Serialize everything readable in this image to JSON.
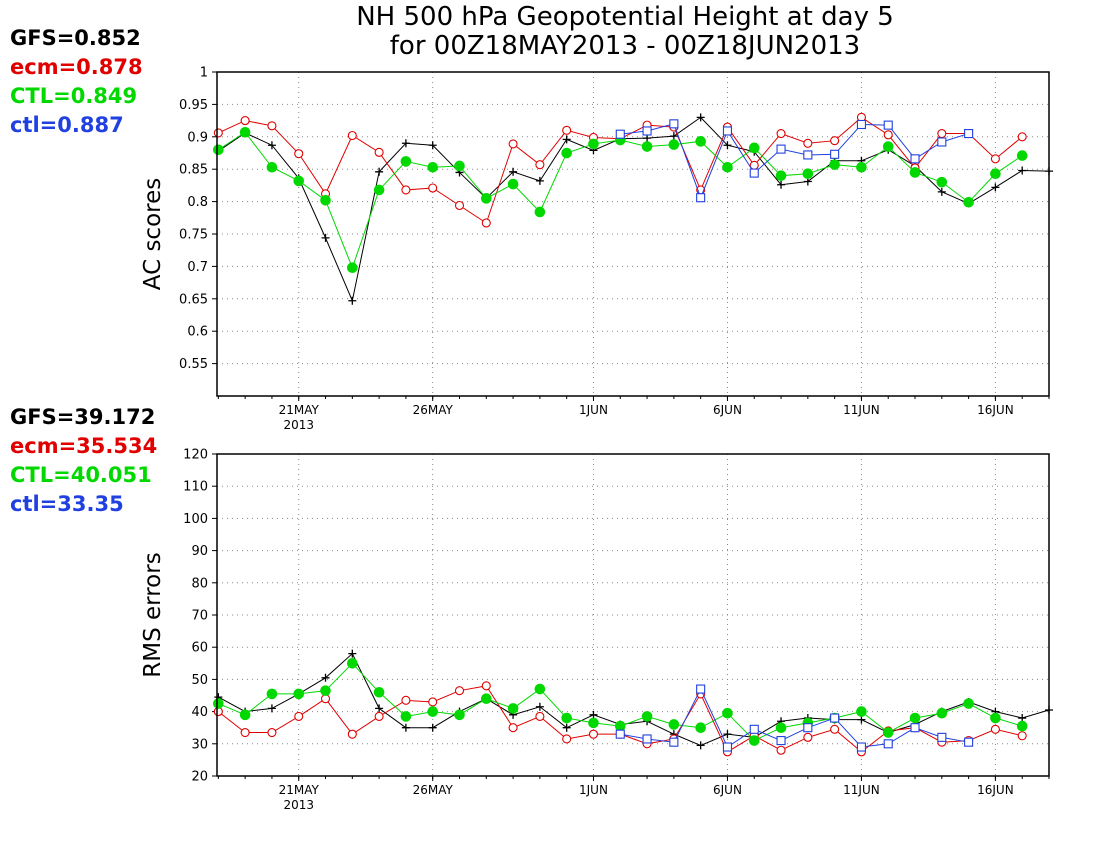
{
  "title": {
    "line1": "NH 500 hPa Geopotential Height at day 5",
    "line2": "for 00Z18MAY2013 - 00Z18JUN2013"
  },
  "colors": {
    "GFS": "#000000",
    "ecm": "#e00000",
    "CTL": "#00d800",
    "ctl": "#2040e0"
  },
  "chart_data": [
    {
      "type": "line",
      "ylabel": "AC scores",
      "ylim": [
        0.5,
        1.0
      ],
      "yticks": [
        "0.55",
        "0.6",
        "0.65",
        "0.7",
        "0.75",
        "0.8",
        "0.85",
        "0.9",
        "0.95",
        "1"
      ],
      "xticks": [
        {
          "label": "21MAY",
          "sub": "2013",
          "day": 21
        },
        {
          "label": "26MAY",
          "sub": "",
          "day": 26
        },
        {
          "label": "1JUN",
          "sub": "",
          "day": 32
        },
        {
          "label": "6JUN",
          "sub": "",
          "day": 37
        },
        {
          "label": "11JUN",
          "sub": "",
          "day": 42
        },
        {
          "label": "16JUN",
          "sub": "",
          "day": 47
        }
      ],
      "legend": [
        {
          "text": "GFS=0.852",
          "key": "GFS"
        },
        {
          "text": "ecm=0.878",
          "key": "ecm"
        },
        {
          "text": "CTL=0.849",
          "key": "CTL"
        },
        {
          "text": "ctl=0.887",
          "key": "ctl"
        }
      ],
      "series": [
        {
          "name": "GFS",
          "marker": "plus",
          "color": "#000000",
          "x": [
            18,
            19,
            20,
            21,
            22,
            23,
            24,
            25,
            26,
            27,
            28,
            29,
            30,
            31,
            32,
            33,
            34,
            35,
            36,
            37,
            38,
            39,
            40,
            41,
            42,
            43,
            44,
            45,
            46,
            47,
            48,
            49
          ],
          "values": [
            0.878,
            0.906,
            0.887,
            0.836,
            0.744,
            0.647,
            0.846,
            0.89,
            0.887,
            0.845,
            0.805,
            0.846,
            0.832,
            0.896,
            0.879,
            0.897,
            0.898,
            0.901,
            0.93,
            0.887,
            0.877,
            0.826,
            0.831,
            0.863,
            0.863,
            0.88,
            0.855,
            0.815,
            0.797,
            0.822,
            0.848,
            0.847
          ]
        },
        {
          "name": "ecm",
          "marker": "circle-open",
          "color": "#e00000",
          "x": [
            18,
            19,
            20,
            21,
            22,
            23,
            24,
            25,
            26,
            27,
            28,
            29,
            30,
            31,
            32,
            33,
            34,
            35,
            36,
            37,
            38,
            39,
            40,
            41,
            42,
            43,
            44,
            45,
            46,
            47,
            48
          ],
          "values": [
            0.906,
            0.925,
            0.917,
            0.874,
            0.812,
            0.902,
            0.876,
            0.818,
            0.821,
            0.794,
            0.767,
            0.889,
            0.857,
            0.91,
            0.899,
            0.897,
            0.918,
            0.915,
            0.818,
            0.915,
            0.856,
            0.905,
            0.89,
            0.894,
            0.93,
            0.903,
            0.852,
            0.905,
            0.905,
            0.866,
            0.9
          ]
        },
        {
          "name": "CTL",
          "marker": "circle-filled",
          "color": "#00d800",
          "x": [
            18,
            19,
            20,
            21,
            22,
            23,
            24,
            25,
            26,
            27,
            28,
            29,
            30,
            31,
            32,
            33,
            34,
            35,
            36,
            37,
            38,
            39,
            40,
            41,
            42,
            43,
            44,
            45,
            46,
            47,
            48
          ],
          "values": [
            0.88,
            0.907,
            0.853,
            0.832,
            0.802,
            0.698,
            0.818,
            0.862,
            0.853,
            0.855,
            0.805,
            0.827,
            0.784,
            0.875,
            0.889,
            0.895,
            0.885,
            0.888,
            0.893,
            0.853,
            0.883,
            0.84,
            0.843,
            0.857,
            0.853,
            0.885,
            0.845,
            0.83,
            0.799,
            0.843,
            0.871
          ]
        },
        {
          "name": "ctl",
          "marker": "square-open",
          "color": "#2040e0",
          "x": [
            33,
            34,
            35,
            36,
            37,
            38,
            39,
            40,
            41,
            42,
            43,
            44,
            45,
            46
          ],
          "values": [
            0.904,
            0.909,
            0.92,
            0.806,
            0.909,
            0.844,
            0.881,
            0.872,
            0.873,
            0.919,
            0.918,
            0.866,
            0.892,
            0.905
          ]
        }
      ]
    },
    {
      "type": "line",
      "ylabel": "RMS errors",
      "ylim": [
        20,
        120
      ],
      "yticks": [
        "20",
        "30",
        "40",
        "50",
        "60",
        "70",
        "80",
        "90",
        "100",
        "110",
        "120"
      ],
      "xticks": [
        {
          "label": "21MAY",
          "sub": "2013",
          "day": 21
        },
        {
          "label": "26MAY",
          "sub": "",
          "day": 26
        },
        {
          "label": "1JUN",
          "sub": "",
          "day": 32
        },
        {
          "label": "6JUN",
          "sub": "",
          "day": 37
        },
        {
          "label": "11JUN",
          "sub": "",
          "day": 42
        },
        {
          "label": "16JUN",
          "sub": "",
          "day": 47
        }
      ],
      "legend": [
        {
          "text": "GFS=39.172",
          "key": "GFS"
        },
        {
          "text": "ecm=35.534",
          "key": "ecm"
        },
        {
          "text": "CTL=40.051",
          "key": "CTL"
        },
        {
          "text": "ctl=33.35",
          "key": "ctl"
        }
      ],
      "series": [
        {
          "name": "GFS",
          "marker": "plus",
          "color": "#000000",
          "x": [
            18,
            19,
            20,
            21,
            22,
            23,
            24,
            25,
            26,
            27,
            28,
            29,
            30,
            31,
            32,
            33,
            34,
            35,
            36,
            37,
            38,
            39,
            40,
            41,
            42,
            43,
            44,
            45,
            46,
            47,
            48,
            49
          ],
          "values": [
            44.5,
            40,
            41,
            45.5,
            50.5,
            58,
            41,
            35,
            35,
            40,
            44,
            39,
            41.5,
            35,
            39,
            36,
            37,
            33,
            29.5,
            33,
            32,
            37,
            38,
            37.5,
            37.5,
            33.5,
            36,
            40,
            43,
            40,
            38,
            40.5
          ]
        },
        {
          "name": "ecm",
          "marker": "circle-open",
          "color": "#e00000",
          "x": [
            18,
            19,
            20,
            21,
            22,
            23,
            24,
            25,
            26,
            27,
            28,
            29,
            30,
            31,
            32,
            33,
            34,
            35,
            36,
            37,
            38,
            39,
            40,
            41,
            42,
            43,
            44,
            45,
            46,
            47,
            48
          ],
          "values": [
            40,
            33.5,
            33.5,
            38.5,
            44,
            33,
            38.5,
            43.5,
            43,
            46.5,
            48,
            35,
            38.5,
            31.5,
            33,
            33,
            30,
            31.5,
            45.5,
            27.5,
            32.5,
            28,
            32,
            34.5,
            27.5,
            34,
            35,
            30.5,
            31,
            34.5,
            32.5
          ]
        },
        {
          "name": "CTL",
          "marker": "circle-filled",
          "color": "#00d800",
          "x": [
            18,
            19,
            20,
            21,
            22,
            23,
            24,
            25,
            26,
            27,
            28,
            29,
            30,
            31,
            32,
            33,
            34,
            35,
            36,
            37,
            38,
            39,
            40,
            41,
            42,
            43,
            44,
            45,
            46,
            47,
            48
          ],
          "values": [
            42.5,
            39,
            45.5,
            45.5,
            46.5,
            55,
            46,
            38.5,
            40,
            39,
            44,
            41,
            47,
            38,
            36.5,
            35.5,
            38.5,
            36,
            35,
            39.5,
            31,
            35,
            36.5,
            38,
            40,
            33.5,
            38,
            39.5,
            42.5,
            38,
            35.5
          ]
        },
        {
          "name": "ctl",
          "marker": "square-open",
          "color": "#2040e0",
          "x": [
            33,
            34,
            35,
            36,
            37,
            38,
            39,
            40,
            41,
            42,
            43,
            44,
            45,
            46
          ],
          "values": [
            33,
            31.5,
            30.5,
            47,
            29,
            34.5,
            31,
            35,
            38,
            29,
            30,
            35,
            32,
            30.5
          ]
        }
      ]
    }
  ]
}
